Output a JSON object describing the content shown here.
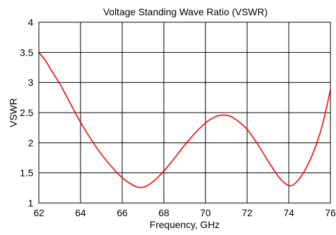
{
  "chart_data": {
    "type": "line",
    "title": "Voltage Standing Wave Ratio (VSWR)",
    "xlabel": "Frequency, GHz",
    "ylabel": "VSWR",
    "xlim": [
      62,
      76
    ],
    "ylim": [
      1,
      4
    ],
    "x_ticks": [
      62,
      64,
      66,
      68,
      70,
      72,
      74,
      76
    ],
    "x_tick_labels": [
      "62",
      "64",
      "66",
      "68",
      "70",
      "72",
      "74",
      "76"
    ],
    "y_ticks": [
      1,
      1.5,
      2,
      2.5,
      3,
      3.5,
      4
    ],
    "y_tick_labels": [
      "1",
      "1.5",
      "2",
      "2.5",
      "3",
      "3.5",
      "4"
    ],
    "grid": true,
    "legend": "none",
    "series": [
      {
        "color": "#ff0000",
        "x": [
          62,
          62.3,
          62.6,
          63.0,
          63.5,
          64.0,
          64.5,
          65.0,
          65.5,
          66.0,
          66.5,
          66.8,
          67.1,
          67.5,
          68.0,
          68.5,
          69.0,
          69.5,
          70.0,
          70.4,
          70.8,
          71.2,
          71.6,
          72.0,
          72.5,
          73.0,
          73.5,
          73.8,
          74.0,
          74.2,
          74.5,
          74.8,
          75.2,
          75.6,
          76.0
        ],
        "y": [
          3.5,
          3.37,
          3.2,
          2.98,
          2.66,
          2.34,
          2.06,
          1.81,
          1.6,
          1.42,
          1.3,
          1.26,
          1.27,
          1.36,
          1.53,
          1.74,
          1.96,
          2.16,
          2.33,
          2.42,
          2.46,
          2.44,
          2.35,
          2.22,
          1.98,
          1.7,
          1.44,
          1.33,
          1.29,
          1.3,
          1.4,
          1.56,
          1.86,
          2.28,
          2.88
        ]
      }
    ]
  }
}
